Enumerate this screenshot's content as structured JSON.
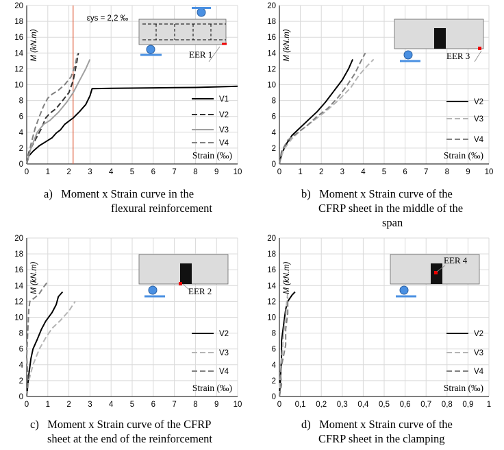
{
  "chart_data": [
    {
      "type": "line",
      "ylabel": "M (kN.m)",
      "xlabel": "Strain (‰)",
      "ylim": [
        0,
        20
      ],
      "yticks": [
        0,
        2,
        4,
        6,
        8,
        10,
        12,
        14,
        16,
        18,
        20
      ],
      "xlim": [
        0,
        10
      ],
      "xticks": [
        "0",
        "1",
        "2",
        "3",
        "4",
        "5",
        "6",
        "7",
        "8",
        "9",
        "10"
      ],
      "annotation": "εys = 2,2 ‰",
      "vline_x": 2.2,
      "inset_label": "EER 1",
      "series": [
        {
          "name": "V1",
          "style": "solid",
          "color": "#000000",
          "points": [
            [
              0,
              0
            ],
            [
              0.1,
              1
            ],
            [
              0.3,
              1.6
            ],
            [
              0.6,
              2.3
            ],
            [
              0.9,
              2.8
            ],
            [
              1.2,
              3.3
            ],
            [
              1.4,
              3.9
            ],
            [
              1.6,
              4.3
            ],
            [
              1.8,
              5.0
            ],
            [
              2.0,
              5.4
            ],
            [
              2.2,
              5.8
            ],
            [
              2.5,
              6.6
            ],
            [
              2.8,
              7.5
            ],
            [
              3.0,
              8.6
            ],
            [
              3.1,
              9.5
            ],
            [
              4,
              9.55
            ],
            [
              6,
              9.6
            ],
            [
              8,
              9.65
            ],
            [
              10,
              9.8
            ]
          ]
        },
        {
          "name": "V2",
          "style": "dashed",
          "color": "#333333",
          "points": [
            [
              0,
              0
            ],
            [
              0.1,
              1.5
            ],
            [
              0.4,
              3.0
            ],
            [
              0.7,
              4.5
            ],
            [
              0.9,
              5.8
            ],
            [
              1.1,
              6.4
            ],
            [
              1.4,
              7.0
            ],
            [
              1.7,
              8.0
            ],
            [
              2.0,
              9.0
            ],
            [
              2.2,
              10.5
            ],
            [
              2.35,
              12.5
            ],
            [
              2.45,
              14.0
            ]
          ]
        },
        {
          "name": "V3",
          "style": "solid",
          "color": "#a0a0a0",
          "points": [
            [
              0,
              0
            ],
            [
              0.2,
              2.0
            ],
            [
              0.5,
              4.0
            ],
            [
              0.8,
              5.0
            ],
            [
              1.1,
              5.5
            ],
            [
              1.5,
              6.5
            ],
            [
              1.9,
              7.8
            ],
            [
              2.2,
              9.0
            ],
            [
              2.5,
              10.5
            ],
            [
              2.8,
              12.0
            ],
            [
              3.0,
              13.2
            ]
          ]
        },
        {
          "name": "V4",
          "style": "dashed",
          "color": "#808080",
          "points": [
            [
              0,
              0
            ],
            [
              0.2,
              2.5
            ],
            [
              0.4,
              4.5
            ],
            [
              0.6,
              6.0
            ],
            [
              0.8,
              7.3
            ],
            [
              1.0,
              8.3
            ],
            [
              1.2,
              8.8
            ],
            [
              1.5,
              9.3
            ],
            [
              1.8,
              10.0
            ],
            [
              2.1,
              11.0
            ],
            [
              2.3,
              12.5
            ],
            [
              2.4,
              13.8
            ]
          ]
        }
      ]
    },
    {
      "type": "line",
      "ylabel": "M (kN.m)",
      "xlabel": "Strain (‰)",
      "ylim": [
        0,
        20
      ],
      "yticks": [
        0,
        2,
        4,
        6,
        8,
        10,
        12,
        14,
        16,
        18,
        20
      ],
      "xlim": [
        0,
        10
      ],
      "xticks": [
        "0",
        "1",
        "2",
        "3",
        "4",
        "5",
        "6",
        "7",
        "8",
        "9",
        "10"
      ],
      "inset_label": "EER 3",
      "series": [
        {
          "name": "V2",
          "style": "solid",
          "color": "#000000",
          "points": [
            [
              0,
              0
            ],
            [
              0.1,
              1.2
            ],
            [
              0.3,
              2.4
            ],
            [
              0.6,
              3.6
            ],
            [
              1.0,
              4.6
            ],
            [
              1.4,
              5.6
            ],
            [
              1.8,
              6.6
            ],
            [
              2.2,
              7.8
            ],
            [
              2.6,
              9.2
            ],
            [
              3.0,
              10.6
            ],
            [
              3.3,
              12.0
            ],
            [
              3.5,
              13.2
            ]
          ]
        },
        {
          "name": "V3",
          "style": "dashed",
          "color": "#b5b5b5",
          "points": [
            [
              0,
              0
            ],
            [
              0.2,
              1.8
            ],
            [
              0.6,
              3.2
            ],
            [
              1.0,
              4.2
            ],
            [
              1.6,
              5.4
            ],
            [
              2.2,
              6.6
            ],
            [
              2.8,
              8.0
            ],
            [
              3.4,
              9.6
            ],
            [
              3.8,
              11.2
            ],
            [
              4.2,
              12.4
            ],
            [
              4.5,
              13.2
            ]
          ]
        },
        {
          "name": "V4",
          "style": "dashed",
          "color": "#808080",
          "points": [
            [
              0,
              0
            ],
            [
              0.1,
              1.6
            ],
            [
              0.4,
              3.0
            ],
            [
              0.8,
              3.8
            ],
            [
              1.3,
              4.8
            ],
            [
              1.8,
              6.0
            ],
            [
              2.3,
              7.0
            ],
            [
              2.8,
              8.4
            ],
            [
              3.2,
              9.8
            ],
            [
              3.6,
              11.4
            ],
            [
              3.9,
              13.0
            ],
            [
              4.1,
              14.0
            ]
          ]
        }
      ]
    },
    {
      "type": "line",
      "ylabel": "M (kN.m)",
      "xlabel": "Strain (‰)",
      "ylim": [
        0,
        20
      ],
      "yticks": [
        0,
        2,
        4,
        6,
        8,
        10,
        12,
        14,
        16,
        18,
        20
      ],
      "xlim": [
        0,
        10
      ],
      "xticks": [
        "0",
        "1",
        "2",
        "3",
        "4",
        "5",
        "6",
        "7",
        "8",
        "9",
        "10"
      ],
      "inset_label": "EER 2",
      "series": [
        {
          "name": "V2",
          "style": "solid",
          "color": "#000000",
          "points": [
            [
              0,
              0
            ],
            [
              0.1,
              2.8
            ],
            [
              0.2,
              4.8
            ],
            [
              0.3,
              6.0
            ],
            [
              0.5,
              7.2
            ],
            [
              0.7,
              8.5
            ],
            [
              0.9,
              9.5
            ],
            [
              1.2,
              10.6
            ],
            [
              1.4,
              11.6
            ],
            [
              1.5,
              12.6
            ],
            [
              1.7,
              13.2
            ]
          ]
        },
        {
          "name": "V3",
          "style": "dashed",
          "color": "#b5b5b5",
          "points": [
            [
              0,
              0
            ],
            [
              0.1,
              2.0
            ],
            [
              0.3,
              4.0
            ],
            [
              0.6,
              6.0
            ],
            [
              0.9,
              7.4
            ],
            [
              1.2,
              8.6
            ],
            [
              1.6,
              9.6
            ],
            [
              2.0,
              10.8
            ],
            [
              2.3,
              12.0
            ]
          ]
        },
        {
          "name": "V4",
          "style": "dashed",
          "color": "#808080",
          "points": [
            [
              0,
              0
            ],
            [
              0.05,
              1.5
            ],
            [
              0.05,
              3.0
            ],
            [
              0.0,
              5.0
            ],
            [
              0.05,
              8.0
            ],
            [
              0.1,
              11.0
            ],
            [
              0.15,
              12.0
            ],
            [
              0.4,
              12.5
            ],
            [
              0.6,
              13.0
            ],
            [
              0.8,
              13.8
            ],
            [
              1.0,
              14.5
            ]
          ]
        }
      ]
    },
    {
      "type": "line",
      "ylabel": "M (kN.m)",
      "xlabel": "Strain (‰)",
      "ylim": [
        0,
        20
      ],
      "yticks": [
        0,
        2,
        4,
        6,
        8,
        10,
        12,
        14,
        16,
        18,
        20
      ],
      "xlim": [
        0,
        1
      ],
      "xticks": [
        "0",
        "0,1",
        "0,2",
        "0,3",
        "0,4",
        "0,5",
        "0,6",
        "0,7",
        "0,8",
        "0,9",
        "1"
      ],
      "inset_label": "EER 4",
      "series": [
        {
          "name": "V2",
          "style": "solid",
          "color": "#000000",
          "points": [
            [
              0,
              0
            ],
            [
              0.005,
              2.0
            ],
            [
              0.01,
              5.0
            ],
            [
              0.01,
              7.0
            ],
            [
              0.02,
              9.0
            ],
            [
              0.03,
              11.0
            ],
            [
              0.04,
              12.0
            ],
            [
              0.06,
              12.8
            ],
            [
              0.075,
              13.2
            ]
          ]
        },
        {
          "name": "V3",
          "style": "dashed",
          "color": "#b5b5b5",
          "points": [
            [
              0,
              0
            ],
            [
              0.005,
              3.0
            ],
            [
              0.015,
              6.0
            ],
            [
              0.02,
              8.0
            ],
            [
              0.03,
              10.0
            ],
            [
              0.035,
              12.0
            ],
            [
              0.04,
              13.0
            ]
          ]
        },
        {
          "name": "V4",
          "style": "dashed",
          "color": "#808080",
          "points": [
            [
              0,
              0
            ],
            [
              0.01,
              1.5
            ],
            [
              0.005,
              3.0
            ],
            [
              0.015,
              4.5
            ],
            [
              0.03,
              6.5
            ],
            [
              0.03,
              8.5
            ],
            [
              0.04,
              10.5
            ],
            [
              0.04,
              12.5
            ]
          ]
        }
      ]
    }
  ],
  "captions": [
    {
      "letter": "a)",
      "line1": "Moment x Strain curve in the",
      "line2": "flexural reinforcement",
      "line3": ""
    },
    {
      "letter": "b)",
      "line1": "Moment x Strain curve of the",
      "line2": "CFRP sheet in the middle of the",
      "line3": "span"
    },
    {
      "letter": "c)",
      "line1": "Moment x Strain curve of the CFRP",
      "line2": "sheet at the end of the reinforcement",
      "line3": ""
    },
    {
      "letter": "d)",
      "line1": "Moment x Strain curve of the",
      "line2": "CFRP sheet in the clamping",
      "line3": ""
    }
  ]
}
